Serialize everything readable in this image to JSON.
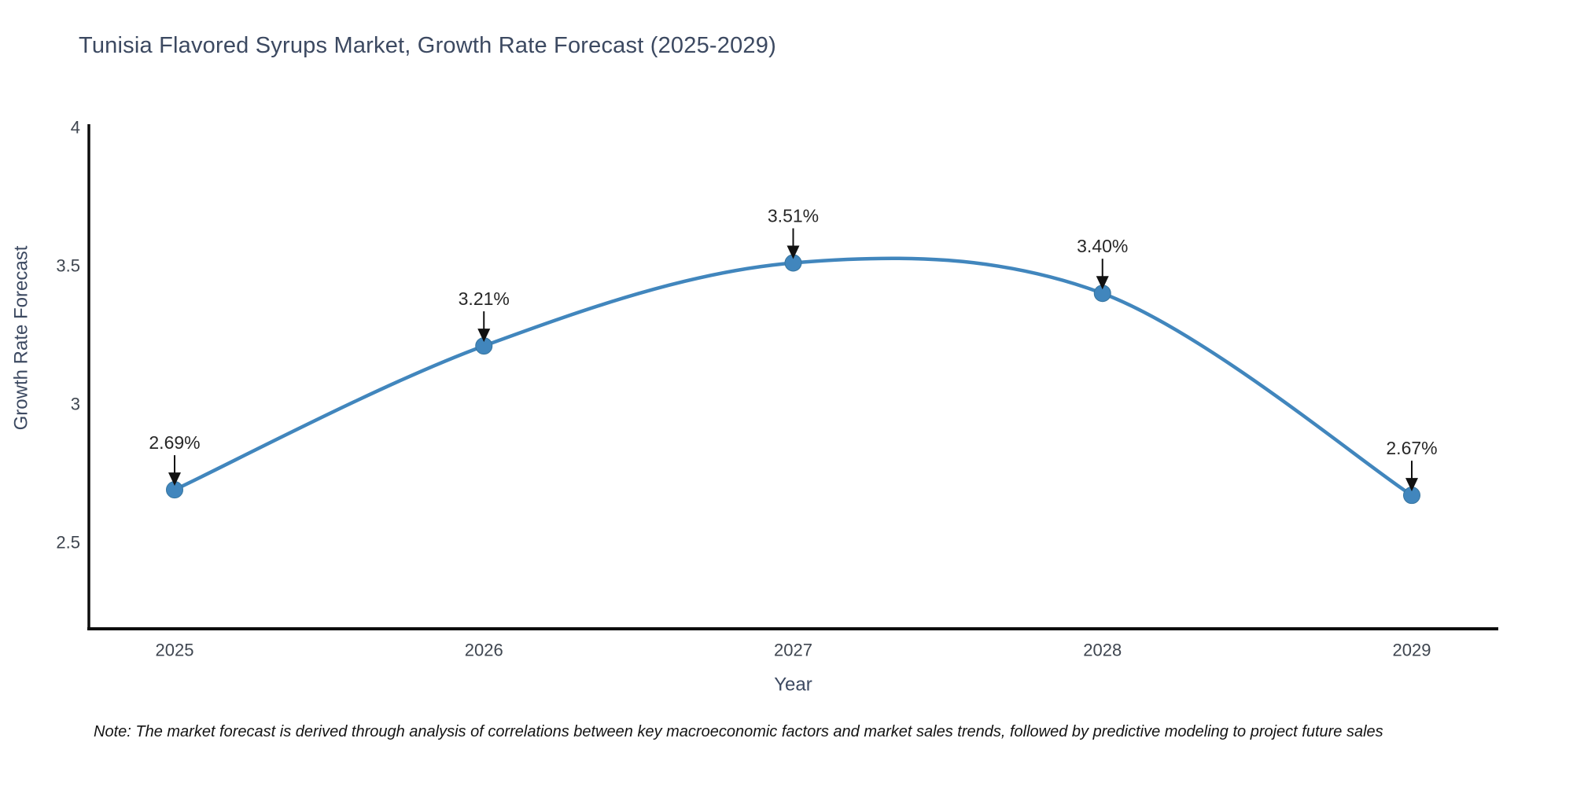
{
  "title": "Tunisia Flavored Syrups Market, Growth Rate Forecast (2025-2029)",
  "note": "Note: The market forecast is derived through analysis of correlations between key macroeconomic factors and market sales trends, followed by predictive modeling to project future sales",
  "chart_data": {
    "type": "line",
    "line_shape": "spline",
    "title": "Tunisia Flavored Syrups Market, Growth Rate Forecast (2025-2029)",
    "xlabel": "Year",
    "ylabel": "Growth Rate Forecast",
    "x": [
      2025,
      2026,
      2027,
      2028,
      2029
    ],
    "xticklabels": [
      "2025",
      "2026",
      "2027",
      "2028",
      "2029"
    ],
    "series": [
      {
        "name": "Growth Rate Forecast",
        "values": [
          2.69,
          3.21,
          3.51,
          3.4,
          2.67
        ]
      }
    ],
    "point_labels": [
      "2.69%",
      "3.21%",
      "3.51%",
      "3.40%",
      "2.67%"
    ],
    "yticks": [
      2.5,
      3,
      3.5,
      4
    ],
    "ylim": [
      2.19,
      4.01
    ],
    "grid": false,
    "legend": "none",
    "colors": {
      "line": "#4186bd",
      "marker_fill": "#4186bd",
      "marker_edge": "#37759f",
      "arrow": "#111111",
      "axis": "#0d0d0d",
      "axis_title_text": "#3c4961",
      "tick_text": "#3f4650",
      "point_label_text": "#272727"
    }
  }
}
